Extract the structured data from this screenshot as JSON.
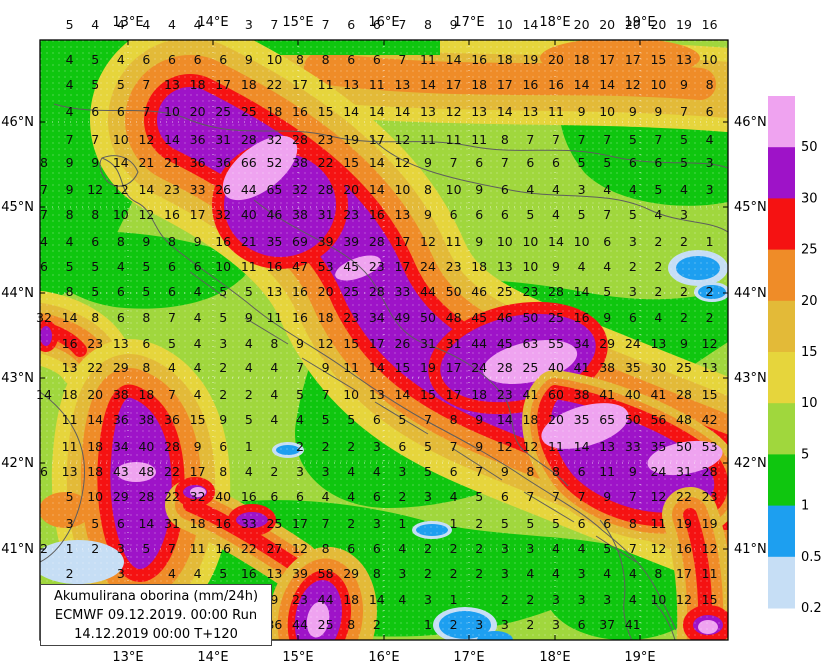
{
  "title_box": {
    "line1": "Akumulirana oborina (mm/24h)",
    "line2": "ECMWF 09.12.2019.  00:00 Run",
    "line3": "14.12.2019 00:00  T+120"
  },
  "axes": {
    "top_lon": [
      "13°E",
      "14°E",
      "15°E",
      "16°E",
      "17°E",
      "18°E",
      "19°E"
    ],
    "bottom_lon": [
      "13°E",
      "14°E",
      "15°E",
      "16°E",
      "17°E",
      "18°E",
      "19°E"
    ],
    "left_lat": [
      "46°N",
      "45°N",
      "44°N",
      "43°N",
      "42°N",
      "41°N"
    ],
    "right_lat": [
      "46°N",
      "45°N",
      "44°N",
      "43°N",
      "42°N",
      "41°N"
    ]
  },
  "colorbar": {
    "tick_labels": [
      "50",
      "30",
      "25",
      "20",
      "15",
      "10",
      "5",
      "1",
      "0.5",
      "0.2"
    ],
    "colors": [
      "#efa3f0",
      "#9e13c8",
      "#f51212",
      "#ef8c28",
      "#e3ba38",
      "#e6d53c",
      "#a0d73d",
      "#0fc60f",
      "#1d9ff0",
      "#c6def5"
    ]
  },
  "chart_data": {
    "type": "heatmap",
    "title": "Akumulirana oborina (mm/24h)",
    "model_run": "ECMWF 09.12.2019. 00:00 Run",
    "valid_time": "14.12.2019 00:00 T+120",
    "units": "mm/24h",
    "lon_labels": [
      "13°E",
      "14°E",
      "15°E",
      "16°E",
      "17°E",
      "18°E",
      "19°E"
    ],
    "lat_labels": [
      "46°N",
      "45°N",
      "44°N",
      "43°N",
      "42°N",
      "41°N"
    ],
    "levels": [
      0.2,
      0.5,
      1,
      5,
      10,
      15,
      20,
      25,
      30,
      50
    ],
    "palette": {
      "0.2-0.5": "#c6def5",
      "0.5-1": "#1d9ff0",
      "1-5": "#0fc60f",
      "5-10": "#a0d73d",
      "10-15": "#e6d53c",
      "15-20": "#e3ba38",
      "20-25": "#ef8c28",
      "25-30": "#f51212",
      "30-50": "#9e13c8",
      ">50": "#efa3f0"
    },
    "grid_rows": [
      [
        "",
        "5",
        "4",
        "4",
        "4",
        "4",
        "4",
        "",
        "3",
        "7",
        "",
        "7",
        "6",
        "6",
        "7",
        "8",
        "9",
        "",
        "10",
        "14",
        "",
        "20",
        "20",
        "20",
        "20",
        "19",
        "16"
      ],
      [
        "",
        "4",
        "5",
        "4",
        "6",
        "6",
        "6",
        "6",
        "9",
        "10",
        "8",
        "8",
        "6",
        "6",
        "7",
        "11",
        "14",
        "16",
        "18",
        "19",
        "20",
        "18",
        "17",
        "17",
        "15",
        "13",
        "10"
      ],
      [
        "",
        "4",
        "5",
        "5",
        "7",
        "13",
        "18",
        "17",
        "18",
        "22",
        "17",
        "11",
        "13",
        "11",
        "13",
        "14",
        "17",
        "18",
        "17",
        "16",
        "16",
        "14",
        "14",
        "12",
        "10",
        "9",
        "8"
      ],
      [
        "",
        "4",
        "6",
        "6",
        "7",
        "10",
        "20",
        "25",
        "25",
        "18",
        "16",
        "15",
        "14",
        "14",
        "14",
        "13",
        "12",
        "13",
        "14",
        "13",
        "11",
        "9",
        "10",
        "9",
        "9",
        "7",
        "6"
      ],
      [
        "",
        "7",
        "7",
        "10",
        "12",
        "14",
        "36",
        "31",
        "28",
        "32",
        "28",
        "23",
        "19",
        "17",
        "12",
        "11",
        "11",
        "11",
        "8",
        "7",
        "7",
        "7",
        "7",
        "5",
        "7",
        "5",
        "4"
      ],
      [
        "8",
        "9",
        "9",
        "14",
        "21",
        "21",
        "36",
        "36",
        "66",
        "52",
        "38",
        "22",
        "15",
        "14",
        "12",
        "9",
        "7",
        "6",
        "7",
        "6",
        "6",
        "5",
        "5",
        "6",
        "6",
        "5",
        "3"
      ],
      [
        "7",
        "9",
        "12",
        "12",
        "14",
        "23",
        "33",
        "26",
        "44",
        "65",
        "32",
        "28",
        "20",
        "14",
        "10",
        "8",
        "10",
        "9",
        "6",
        "4",
        "4",
        "3",
        "4",
        "4",
        "5",
        "4",
        "3"
      ],
      [
        "7",
        "8",
        "8",
        "10",
        "12",
        "16",
        "17",
        "32",
        "40",
        "46",
        "38",
        "31",
        "23",
        "16",
        "13",
        "9",
        "6",
        "6",
        "6",
        "5",
        "4",
        "5",
        "7",
        "5",
        "4",
        "3",
        ""
      ],
      [
        "4",
        "4",
        "6",
        "8",
        "9",
        "8",
        "9",
        "16",
        "21",
        "35",
        "69",
        "39",
        "39",
        "28",
        "17",
        "12",
        "11",
        "9",
        "10",
        "10",
        "14",
        "10",
        "6",
        "3",
        "2",
        "2",
        "1"
      ],
      [
        "6",
        "5",
        "5",
        "4",
        "5",
        "6",
        "6",
        "10",
        "11",
        "16",
        "47",
        "53",
        "45",
        "23",
        "17",
        "24",
        "23",
        "18",
        "13",
        "10",
        "9",
        "4",
        "4",
        "2",
        "2",
        "",
        ""
      ],
      [
        "",
        "8",
        "5",
        "6",
        "5",
        "6",
        "4",
        "5",
        "5",
        "13",
        "16",
        "20",
        "25",
        "28",
        "33",
        "44",
        "50",
        "46",
        "25",
        "23",
        "28",
        "14",
        "5",
        "3",
        "2",
        "2",
        "2"
      ],
      [
        "32",
        "14",
        "8",
        "6",
        "8",
        "7",
        "4",
        "5",
        "9",
        "11",
        "16",
        "18",
        "23",
        "34",
        "49",
        "50",
        "48",
        "45",
        "46",
        "50",
        "25",
        "16",
        "9",
        "6",
        "4",
        "2",
        "2"
      ],
      [
        "",
        "16",
        "23",
        "13",
        "6",
        "5",
        "4",
        "3",
        "4",
        "8",
        "9",
        "12",
        "15",
        "17",
        "26",
        "31",
        "31",
        "44",
        "45",
        "63",
        "55",
        "34",
        "29",
        "24",
        "13",
        "9",
        "12"
      ],
      [
        "",
        "13",
        "22",
        "29",
        "8",
        "4",
        "4",
        "2",
        "4",
        "4",
        "7",
        "9",
        "11",
        "14",
        "15",
        "19",
        "17",
        "24",
        "28",
        "25",
        "40",
        "41",
        "38",
        "35",
        "30",
        "25",
        "13"
      ],
      [
        "14",
        "18",
        "20",
        "38",
        "18",
        "7",
        "4",
        "2",
        "2",
        "4",
        "5",
        "7",
        "10",
        "13",
        "14",
        "15",
        "17",
        "18",
        "23",
        "41",
        "60",
        "38",
        "41",
        "40",
        "41",
        "28",
        "15"
      ],
      [
        "",
        "11",
        "14",
        "36",
        "38",
        "36",
        "15",
        "9",
        "5",
        "4",
        "4",
        "5",
        "5",
        "6",
        "5",
        "7",
        "8",
        "9",
        "14",
        "18",
        "20",
        "35",
        "65",
        "50",
        "56",
        "48",
        "42"
      ],
      [
        "",
        "11",
        "18",
        "34",
        "40",
        "28",
        "9",
        "6",
        "1",
        "",
        "2",
        "2",
        "2",
        "3",
        "6",
        "5",
        "7",
        "9",
        "12",
        "12",
        "11",
        "14",
        "13",
        "33",
        "35",
        "50",
        "53"
      ],
      [
        "6",
        "13",
        "18",
        "43",
        "48",
        "22",
        "17",
        "8",
        "4",
        "2",
        "3",
        "3",
        "4",
        "4",
        "3",
        "5",
        "6",
        "7",
        "9",
        "8",
        "8",
        "6",
        "11",
        "9",
        "24",
        "31",
        "28"
      ],
      [
        "",
        "5",
        "10",
        "29",
        "28",
        "22",
        "32",
        "40",
        "16",
        "6",
        "6",
        "4",
        "4",
        "6",
        "2",
        "3",
        "4",
        "5",
        "6",
        "7",
        "7",
        "7",
        "9",
        "7",
        "12",
        "22",
        "23"
      ],
      [
        "",
        "3",
        "5",
        "6",
        "14",
        "31",
        "18",
        "16",
        "33",
        "25",
        "17",
        "7",
        "2",
        "3",
        "1",
        "",
        "1",
        "2",
        "5",
        "5",
        "5",
        "6",
        "6",
        "8",
        "11",
        "19",
        "19"
      ],
      [
        "2",
        "1",
        "2",
        "3",
        "5",
        "7",
        "11",
        "16",
        "22",
        "27",
        "12",
        "8",
        "6",
        "6",
        "4",
        "2",
        "2",
        "2",
        "3",
        "3",
        "4",
        "4",
        "5",
        "7",
        "12",
        "16",
        "12"
      ],
      [
        "",
        "2",
        "",
        "3",
        "",
        "4",
        "4",
        "5",
        "16",
        "13",
        "39",
        "58",
        "29",
        "8",
        "3",
        "2",
        "2",
        "2",
        "3",
        "4",
        "4",
        "3",
        "4",
        "4",
        "8",
        "17",
        "11"
      ],
      [
        "",
        "",
        "",
        "",
        "",
        "",
        "",
        "",
        "",
        "9",
        "23",
        "44",
        "18",
        "14",
        "4",
        "3",
        "1",
        "",
        "2",
        "2",
        "3",
        "3",
        "3",
        "4",
        "10",
        "12",
        "15"
      ],
      [
        "",
        "",
        "",
        "",
        "",
        "",
        "",
        "6",
        "19",
        "36",
        "44",
        "25",
        "8",
        "2",
        "",
        "1",
        "2",
        "3",
        "3",
        "2",
        "3",
        "6",
        "37",
        "41",
        "",
        "",
        ""
      ]
    ]
  }
}
